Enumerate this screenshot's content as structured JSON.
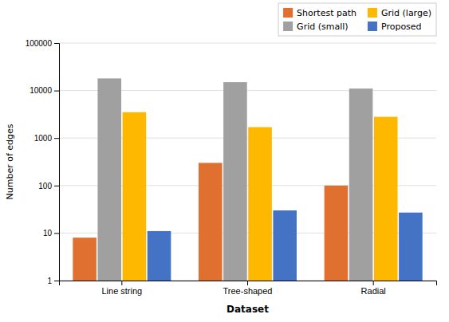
{
  "chart_data": {
    "type": "bar",
    "categories": [
      "Line string",
      "Tree-shaped",
      "Radial"
    ],
    "series": [
      {
        "name": "Shortest path",
        "color": "#E07030",
        "values": [
          8,
          300,
          100
        ]
      },
      {
        "name": "Grid (small)",
        "color": "#A0A0A0",
        "values": [
          18000,
          15000,
          11000
        ]
      },
      {
        "name": "Grid (large)",
        "color": "#FFB800",
        "values": [
          3500,
          1700,
          2800
        ]
      },
      {
        "name": "Proposed",
        "color": "#4472C4",
        "values": [
          11,
          30,
          27
        ]
      }
    ],
    "xlabel": "Dataset",
    "ylabel": "Number of edges",
    "log": "y",
    "ylim": [
      1,
      100000
    ],
    "yticks": [
      1,
      10,
      100,
      1000,
      10000,
      100000
    ],
    "grid": true,
    "legend": "upper right"
  }
}
